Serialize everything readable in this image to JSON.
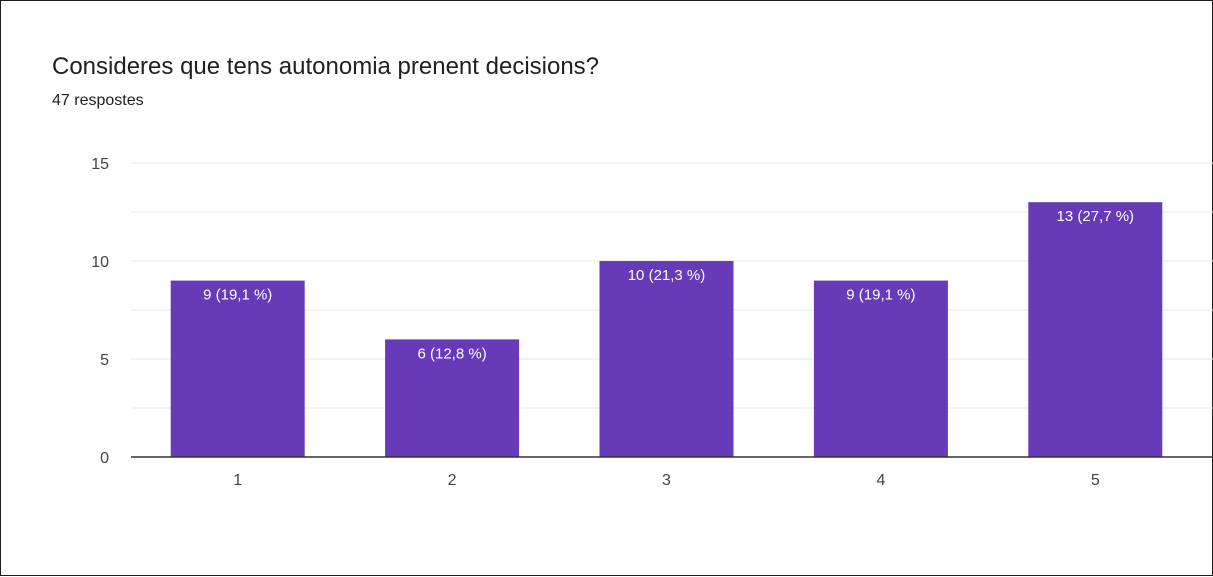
{
  "header": {
    "title": "Consideres que tens autonomia prenent decisions?",
    "subtitle": "47 respostes"
  },
  "colors": {
    "bar": "#673ab7",
    "grid": "#e8e8e8",
    "axis": "#333333"
  },
  "chart_data": {
    "type": "bar",
    "title": "Consideres que tens autonomia prenent decisions?",
    "subtitle": "47 respostes",
    "categories": [
      "1",
      "2",
      "3",
      "4",
      "5"
    ],
    "values": [
      9,
      6,
      10,
      9,
      13
    ],
    "data_labels": [
      "9 (19,1 %)",
      "6 (12,8 %)",
      "10 (21,3 %)",
      "9 (19,1 %)",
      "13 (27,7 %)"
    ],
    "xlabel": "",
    "ylabel": "",
    "ylim": [
      0,
      15
    ],
    "yticks": [
      0,
      5,
      10,
      15
    ],
    "grid": true,
    "legend": "none"
  }
}
